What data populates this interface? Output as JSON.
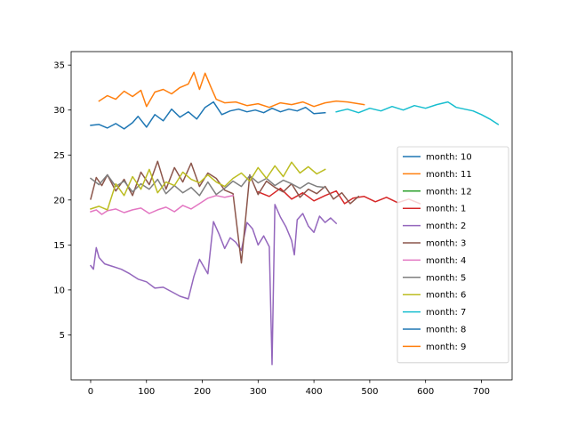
{
  "chart_data": {
    "type": "line",
    "title": "",
    "xlabel": "",
    "ylabel": "",
    "xlim": [
      -35,
      755
    ],
    "ylim": [
      0,
      36.5
    ],
    "xticks": [
      0,
      100,
      200,
      300,
      400,
      500,
      600,
      700
    ],
    "yticks": [
      5,
      10,
      15,
      20,
      25,
      30,
      35
    ],
    "grid": false,
    "legend_placement": "right",
    "series": [
      {
        "name": "month: 10",
        "color": "#1f77b4",
        "style": "solid",
        "x": [
          0,
          15,
          30,
          45,
          60,
          75,
          85,
          100,
          115,
          130,
          145,
          160,
          175,
          190,
          205,
          220,
          235,
          250,
          265,
          280,
          295,
          310,
          325,
          340,
          355,
          370,
          385,
          400,
          420
        ],
        "y": [
          28.3,
          28.4,
          28.0,
          28.5,
          27.9,
          28.6,
          29.3,
          28.1,
          29.5,
          28.8,
          30.1,
          29.2,
          29.8,
          29.0,
          30.3,
          30.9,
          29.5,
          29.9,
          30.1,
          29.8,
          30.0,
          29.7,
          30.2,
          29.8,
          30.1,
          29.9,
          30.3,
          29.6,
          29.7
        ]
      },
      {
        "name": "month: 11",
        "color": "#ff7f0e",
        "style": "solid",
        "x": [
          15,
          30,
          45,
          60,
          75,
          90,
          100,
          115,
          130,
          145,
          160,
          175,
          185,
          195,
          205,
          215,
          225,
          240,
          260,
          280,
          300,
          320,
          340,
          360,
          380,
          400,
          420,
          440,
          460,
          490
        ],
        "y": [
          31.0,
          31.6,
          31.2,
          32.1,
          31.5,
          32.2,
          30.4,
          32.0,
          32.3,
          31.8,
          32.5,
          32.9,
          34.2,
          32.3,
          34.1,
          32.6,
          31.2,
          30.8,
          30.9,
          30.5,
          30.7,
          30.3,
          30.8,
          30.6,
          30.9,
          30.4,
          30.8,
          31.0,
          30.9,
          30.6
        ]
      },
      {
        "name": "month: 12",
        "color": "#2ca02c",
        "style": "solid",
        "x": [],
        "y": []
      },
      {
        "name": "month: 1",
        "color": "#d62728",
        "style": "solid",
        "x": [
          300,
          320,
          340,
          360,
          380,
          400,
          420,
          440,
          455,
          470,
          490,
          510,
          530,
          550,
          570,
          590
        ],
        "y": [
          20.9,
          20.4,
          21.3,
          20.1,
          20.8,
          19.9,
          20.5,
          21.0,
          19.6,
          20.2,
          20.4,
          19.8,
          20.3,
          19.7,
          20.1,
          19.6
        ]
      },
      {
        "name": "month: 2",
        "color": "#9467bd",
        "style": "solid",
        "x": [
          0,
          5,
          10,
          15,
          25,
          40,
          55,
          70,
          85,
          100,
          115,
          130,
          145,
          160,
          175,
          185,
          195,
          210,
          220,
          230,
          240,
          250,
          260,
          270,
          280,
          290,
          300,
          310,
          320,
          325,
          330,
          340,
          350,
          360,
          365,
          370,
          380,
          390,
          400,
          410,
          420,
          430,
          440
        ],
        "y": [
          12.7,
          12.3,
          14.7,
          13.6,
          12.9,
          12.6,
          12.3,
          11.8,
          11.2,
          10.9,
          10.2,
          10.3,
          9.8,
          9.3,
          9.0,
          11.5,
          13.4,
          11.8,
          17.6,
          16.2,
          14.6,
          15.8,
          15.3,
          14.4,
          17.5,
          16.8,
          15.0,
          16.0,
          14.8,
          1.7,
          19.5,
          18.1,
          17.0,
          15.5,
          13.9,
          17.8,
          18.5,
          17.1,
          16.4,
          18.2,
          17.5,
          18.0,
          17.4
        ]
      },
      {
        "name": "month: 3",
        "color": "#8c564b",
        "style": "solid",
        "x": [
          0,
          10,
          20,
          30,
          45,
          60,
          75,
          90,
          105,
          120,
          135,
          150,
          165,
          180,
          195,
          210,
          225,
          240,
          255,
          270,
          285,
          300,
          315,
          330,
          345,
          360,
          375,
          390,
          405,
          420,
          435,
          450,
          465,
          480
        ],
        "y": [
          20.1,
          22.5,
          21.6,
          22.8,
          21.0,
          22.3,
          20.5,
          23.1,
          21.7,
          24.3,
          21.2,
          23.6,
          22.0,
          24.1,
          21.5,
          23.0,
          22.4,
          21.1,
          20.7,
          13.0,
          22.8,
          20.6,
          22.1,
          21.4,
          20.9,
          21.8,
          20.3,
          21.2,
          20.7,
          21.5,
          20.1,
          20.8,
          19.6,
          20.4
        ]
      },
      {
        "name": "month: 4",
        "color": "#e377c2",
        "style": "solid",
        "x": [
          0,
          10,
          20,
          30,
          45,
          60,
          75,
          90,
          105,
          120,
          135,
          150,
          165,
          180,
          195,
          210,
          225,
          240,
          255
        ],
        "y": [
          18.7,
          18.9,
          18.4,
          18.8,
          19.0,
          18.6,
          18.9,
          19.1,
          18.5,
          18.9,
          19.2,
          18.7,
          19.4,
          19.0,
          19.6,
          20.2,
          20.5,
          20.3,
          20.5
        ]
      },
      {
        "name": "month: 5",
        "color": "#7f7f7f",
        "style": "solid",
        "x": [
          0,
          15,
          30,
          45,
          60,
          75,
          90,
          105,
          120,
          135,
          150,
          165,
          180,
          195,
          210,
          225,
          240,
          255,
          270,
          285,
          300,
          315,
          330,
          345,
          360,
          375,
          390,
          405,
          420
        ],
        "y": [
          22.4,
          21.7,
          22.8,
          21.5,
          22.1,
          20.9,
          21.8,
          21.2,
          22.3,
          20.7,
          21.6,
          20.8,
          21.4,
          20.5,
          22.0,
          20.6,
          21.3,
          22.1,
          21.5,
          22.7,
          21.9,
          22.4,
          21.6,
          22.2,
          21.8,
          21.3,
          21.9,
          21.5,
          21.4
        ]
      },
      {
        "name": "month: 6",
        "color": "#bcbd22",
        "style": "solid",
        "x": [
          0,
          15,
          30,
          45,
          60,
          75,
          90,
          105,
          120,
          135,
          150,
          165,
          180,
          195,
          210,
          225,
          240,
          255,
          270,
          285,
          300,
          315,
          330,
          345,
          360,
          375,
          390,
          405,
          420
        ],
        "y": [
          19.0,
          19.3,
          18.9,
          21.8,
          20.5,
          22.6,
          21.2,
          23.4,
          20.8,
          22.0,
          21.6,
          23.1,
          22.3,
          21.9,
          22.8,
          22.0,
          21.5,
          22.4,
          23.0,
          22.1,
          23.6,
          22.4,
          23.8,
          22.6,
          24.2,
          23.0,
          23.7,
          22.9,
          23.4
        ]
      },
      {
        "name": "month: 7",
        "color": "#17becf",
        "style": "solid",
        "x": [
          440,
          460,
          480,
          500,
          520,
          540,
          560,
          580,
          600,
          620,
          640,
          655,
          670,
          685,
          700,
          715,
          730
        ],
        "y": [
          29.8,
          30.1,
          29.7,
          30.2,
          29.9,
          30.4,
          30.0,
          30.5,
          30.2,
          30.6,
          30.9,
          30.3,
          30.1,
          29.9,
          29.5,
          29.0,
          28.4
        ]
      },
      {
        "name": "month: 8",
        "color": "#1f77b4",
        "style": "solid",
        "x": [],
        "y": []
      },
      {
        "name": "month: 9",
        "color": "#ff7f0e",
        "style": "solid",
        "x": [],
        "y": []
      }
    ]
  }
}
